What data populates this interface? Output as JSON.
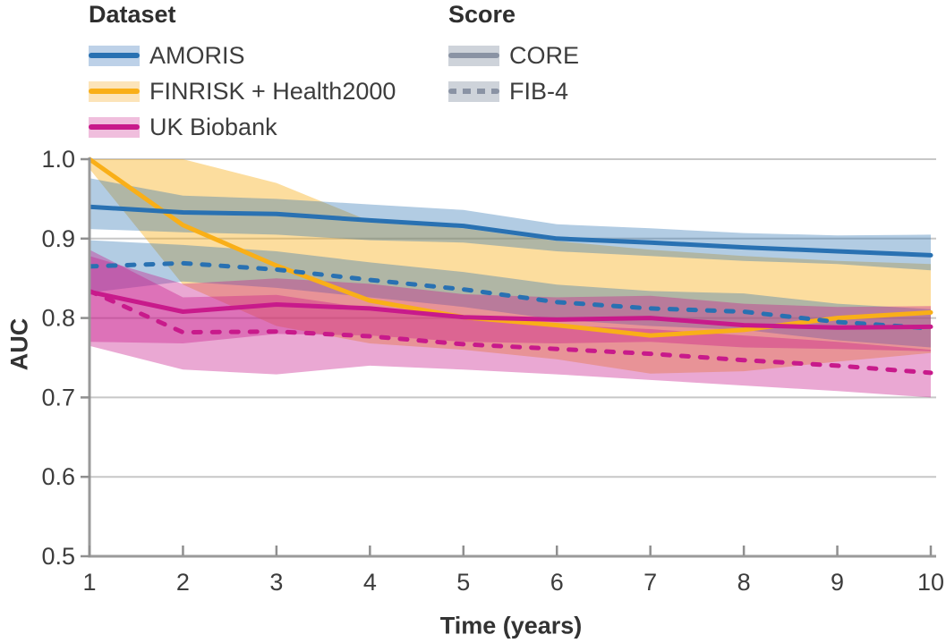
{
  "figure": {
    "background": "#ffffff"
  },
  "legend": {
    "dataset": {
      "title": "Dataset",
      "items": [
        {
          "label": "AMORIS",
          "line_color": "#2971b2",
          "band_color": "#bdd1e8",
          "line_style": "solid"
        },
        {
          "label": "FINRISK + Health2000",
          "line_color": "#f9af18",
          "band_color": "#fce4b9",
          "line_style": "solid"
        },
        {
          "label": "UK Biobank",
          "line_color": "#c81a8b",
          "band_color": "#f0bedd",
          "line_style": "solid"
        }
      ]
    },
    "score": {
      "title": "Score",
      "items": [
        {
          "label": "CORE",
          "line_color": "#8a93a4",
          "band_color": "#ced3da",
          "line_style": "solid"
        },
        {
          "label": "FIB-4",
          "line_color": "#8a93a4",
          "band_color": "#ced3da",
          "line_style": "dashed"
        }
      ]
    }
  },
  "chart_data": {
    "type": "line",
    "title": "",
    "xlabel": "Time (years)",
    "ylabel": "AUC",
    "x": [
      1,
      2,
      3,
      4,
      5,
      6,
      7,
      8,
      9,
      10
    ],
    "xticks": [
      1,
      2,
      3,
      4,
      5,
      6,
      7,
      8,
      9,
      10
    ],
    "yticks": [
      0.5,
      0.6,
      0.7,
      0.8,
      0.9,
      1.0
    ],
    "xlim": [
      1,
      10
    ],
    "ylim": [
      0.5,
      1.0
    ],
    "grid": "horizontal",
    "legend_position": "top",
    "colors": {
      "gridline": "#c7c7c7",
      "axis": "#9a9a9a",
      "tick": "#8f8f8f",
      "tick_label": "#3d3d3d"
    },
    "series": [
      {
        "name": "FINRISK + Health2000 CORE",
        "dataset": "FINRISK + Health2000",
        "score": "CORE",
        "style": "solid",
        "color": "#f9af18",
        "band_opacity": 0.42,
        "values": [
          1.0,
          0.917,
          0.866,
          0.822,
          0.801,
          0.791,
          0.778,
          0.785,
          0.8,
          0.807
        ],
        "ci_lower": [
          0.988,
          0.842,
          0.79,
          0.768,
          0.76,
          0.748,
          0.73,
          0.733,
          0.745,
          0.756
        ],
        "ci_upper": [
          1.0,
          1.0,
          0.97,
          0.922,
          0.913,
          0.897,
          0.886,
          0.878,
          0.872,
          0.868
        ]
      },
      {
        "name": "AMORIS CORE",
        "dataset": "AMORIS",
        "score": "CORE",
        "style": "solid",
        "color": "#2971b2",
        "band_opacity": 0.36,
        "values": [
          0.94,
          0.933,
          0.931,
          0.923,
          0.916,
          0.9,
          0.895,
          0.889,
          0.884,
          0.879
        ],
        "ci_lower": [
          0.912,
          0.908,
          0.905,
          0.898,
          0.895,
          0.884,
          0.878,
          0.872,
          0.868,
          0.86
        ],
        "ci_upper": [
          0.976,
          0.954,
          0.95,
          0.943,
          0.936,
          0.918,
          0.913,
          0.907,
          0.904,
          0.905
        ]
      },
      {
        "name": "AMORIS FIB-4",
        "dataset": "AMORIS",
        "score": "FIB-4",
        "style": "dashed",
        "color": "#2971b2",
        "band_opacity": 0.36,
        "values": [
          0.865,
          0.869,
          0.861,
          0.848,
          0.836,
          0.82,
          0.812,
          0.808,
          0.795,
          0.787
        ],
        "ci_lower": [
          0.832,
          0.846,
          0.838,
          0.826,
          0.814,
          0.798,
          0.79,
          0.785,
          0.772,
          0.763
        ],
        "ci_upper": [
          0.898,
          0.892,
          0.884,
          0.87,
          0.858,
          0.842,
          0.834,
          0.831,
          0.818,
          0.811
        ]
      },
      {
        "name": "UK Biobank CORE",
        "dataset": "UK Biobank",
        "score": "CORE",
        "style": "solid",
        "color": "#c81a8b",
        "band_opacity": 0.38,
        "values": [
          0.833,
          0.808,
          0.817,
          0.812,
          0.801,
          0.798,
          0.8,
          0.791,
          0.788,
          0.789
        ],
        "ci_lower": [
          0.77,
          0.768,
          0.78,
          0.778,
          0.77,
          0.768,
          0.77,
          0.763,
          0.761,
          0.758
        ],
        "ci_upper": [
          0.878,
          0.843,
          0.85,
          0.843,
          0.83,
          0.826,
          0.828,
          0.818,
          0.814,
          0.815
        ]
      },
      {
        "name": "UK Biobank FIB-4",
        "dataset": "UK Biobank",
        "score": "FIB-4",
        "style": "dashed",
        "color": "#c81a8b",
        "band_opacity": 0.38,
        "values": [
          0.834,
          0.782,
          0.783,
          0.777,
          0.767,
          0.761,
          0.755,
          0.747,
          0.74,
          0.731
        ],
        "ci_lower": [
          0.765,
          0.735,
          0.729,
          0.74,
          0.735,
          0.729,
          0.722,
          0.715,
          0.708,
          0.7
        ],
        "ci_upper": [
          0.886,
          0.826,
          0.829,
          0.812,
          0.798,
          0.791,
          0.786,
          0.778,
          0.77,
          0.76
        ]
      }
    ]
  }
}
